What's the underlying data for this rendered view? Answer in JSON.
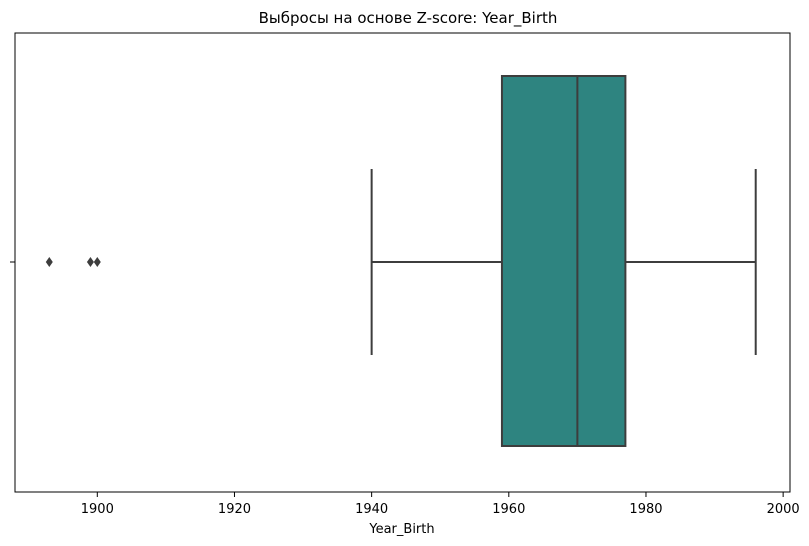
{
  "chart_data": {
    "type": "box",
    "title": "Выбросы на основе Z-score: Year_Birth",
    "xlabel": "Year_Birth",
    "ylabel": "",
    "xlim": [
      1888,
      2001
    ],
    "x_ticks": [
      1900,
      1920,
      1940,
      1960,
      1980,
      2000
    ],
    "x_tick_labels": [
      "1900",
      "1920",
      "1940",
      "1960",
      "1980",
      "2000"
    ],
    "y_tick_labels": [
      ""
    ],
    "grid": false,
    "box": {
      "whisker_low": 1940,
      "q1": 1959,
      "median": 1970,
      "q3": 1977,
      "whisker_high": 1996,
      "outliers": [
        1893,
        1899,
        1900
      ],
      "color": "#2e8480"
    }
  }
}
